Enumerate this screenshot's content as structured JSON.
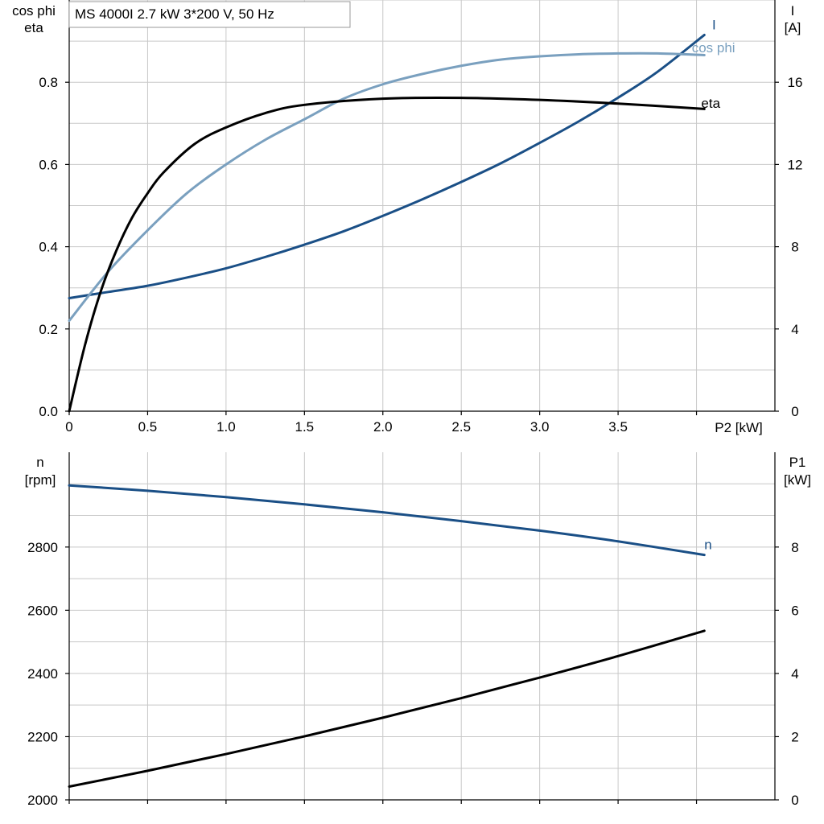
{
  "legend_box": {
    "title": "MS 4000I   2.7 kW   3*200 V, 50 Hz"
  },
  "colors": {
    "I": "#1a4f86",
    "cos_phi": "#7aa0bf",
    "eta": "#000000",
    "n": "#1a4f86",
    "P1": "#000000",
    "grid": "#c8c8c8"
  },
  "chart_data": [
    {
      "type": "line",
      "grid": true,
      "x_axis": {
        "label": "P2 [kW]",
        "range": [
          0,
          4.5
        ],
        "ticks": [
          0,
          0.5,
          1.0,
          1.5,
          2.0,
          2.5,
          3.0,
          3.5,
          4.0
        ],
        "tick_labels": [
          "0",
          "0.5",
          "1.0",
          "1.5",
          "2.0",
          "2.5",
          "3.0",
          "3.5",
          ""
        ]
      },
      "y_left": {
        "label_line1": "cos phi",
        "label_line2": "eta",
        "range": [
          0,
          1.0
        ],
        "ticks": [
          0.0,
          0.2,
          0.4,
          0.6,
          0.8
        ],
        "tick_labels": [
          "0.0",
          "0.2",
          "0.4",
          "0.6",
          "0.8"
        ]
      },
      "y_right": {
        "label_line1": "I",
        "label_line2": "[A]",
        "range": [
          0,
          20
        ],
        "ticks": [
          0,
          4,
          8,
          12,
          16
        ],
        "tick_labels": [
          "0",
          "4",
          "8",
          "12",
          "16"
        ]
      },
      "series": [
        {
          "name": "I",
          "axis": "right",
          "color_key": "I",
          "x": [
            0,
            0.25,
            0.5,
            0.75,
            1.0,
            1.25,
            1.5,
            1.75,
            2.0,
            2.25,
            2.5,
            2.75,
            3.0,
            3.25,
            3.5,
            3.75,
            4.05
          ],
          "y": [
            5.5,
            5.8,
            6.1,
            6.5,
            6.95,
            7.5,
            8.1,
            8.75,
            9.5,
            10.3,
            11.15,
            12.05,
            13.05,
            14.1,
            15.25,
            16.5,
            18.3
          ]
        },
        {
          "name": "cos phi",
          "axis": "left",
          "color_key": "cos_phi",
          "x": [
            0,
            0.25,
            0.5,
            0.75,
            1.0,
            1.25,
            1.5,
            1.75,
            2.0,
            2.25,
            2.5,
            2.75,
            3.0,
            3.25,
            3.5,
            3.75,
            4.05
          ],
          "y": [
            0.22,
            0.34,
            0.44,
            0.53,
            0.6,
            0.66,
            0.71,
            0.76,
            0.795,
            0.82,
            0.84,
            0.855,
            0.863,
            0.868,
            0.87,
            0.87,
            0.866
          ]
        },
        {
          "name": "eta",
          "axis": "left",
          "color_key": "eta",
          "x": [
            0,
            0.1,
            0.2,
            0.3,
            0.4,
            0.5,
            0.6,
            0.8,
            1.0,
            1.25,
            1.5,
            2.0,
            2.5,
            3.0,
            3.5,
            4.05
          ],
          "y": [
            0.0,
            0.16,
            0.29,
            0.39,
            0.47,
            0.53,
            0.58,
            0.65,
            0.69,
            0.725,
            0.745,
            0.76,
            0.762,
            0.757,
            0.748,
            0.735
          ]
        }
      ],
      "annotations": [
        {
          "text": "I",
          "x": 4.1,
          "y_right": 18.8,
          "color_key": "I"
        },
        {
          "text": "cos phi",
          "x": 3.97,
          "y": 0.885,
          "color_key": "cos_phi"
        },
        {
          "text": "eta",
          "x": 4.03,
          "y": 0.75,
          "color_key": "eta"
        }
      ]
    },
    {
      "type": "line",
      "grid": true,
      "x_axis": {
        "range": [
          0,
          4.5
        ],
        "ticks": [
          0,
          0.5,
          1.0,
          1.5,
          2.0,
          2.5,
          3.0,
          3.5,
          4.0
        ]
      },
      "y_left": {
        "label_line1": "n",
        "label_line2": "[rpm]",
        "range": [
          2000,
          3100
        ],
        "ticks": [
          2000,
          2200,
          2400,
          2600,
          2800
        ],
        "tick_labels": [
          "2000",
          "2200",
          "2400",
          "2600",
          "2800"
        ]
      },
      "y_right": {
        "label_line1": "P1",
        "label_line2": "[kW]",
        "range": [
          0,
          11
        ],
        "ticks": [
          0,
          2,
          4,
          6,
          8
        ],
        "tick_labels": [
          "0",
          "2",
          "4",
          "6",
          "8"
        ]
      },
      "series": [
        {
          "name": "n",
          "axis": "left",
          "color_key": "n",
          "x": [
            0,
            0.5,
            1.0,
            1.5,
            2.0,
            2.5,
            3.0,
            3.5,
            4.05
          ],
          "y": [
            2995,
            2978,
            2958,
            2935,
            2910,
            2882,
            2852,
            2818,
            2775
          ]
        },
        {
          "name": "P1",
          "axis": "right",
          "color_key": "P1",
          "x": [
            0,
            0.5,
            1.0,
            1.5,
            2.0,
            2.5,
            3.0,
            3.5,
            4.05
          ],
          "y": [
            0.42,
            0.92,
            1.45,
            2.01,
            2.6,
            3.22,
            3.87,
            4.55,
            5.35
          ]
        }
      ],
      "annotations": [
        {
          "text": "n",
          "x": 4.05,
          "y": 2808,
          "color_key": "n"
        }
      ]
    }
  ]
}
